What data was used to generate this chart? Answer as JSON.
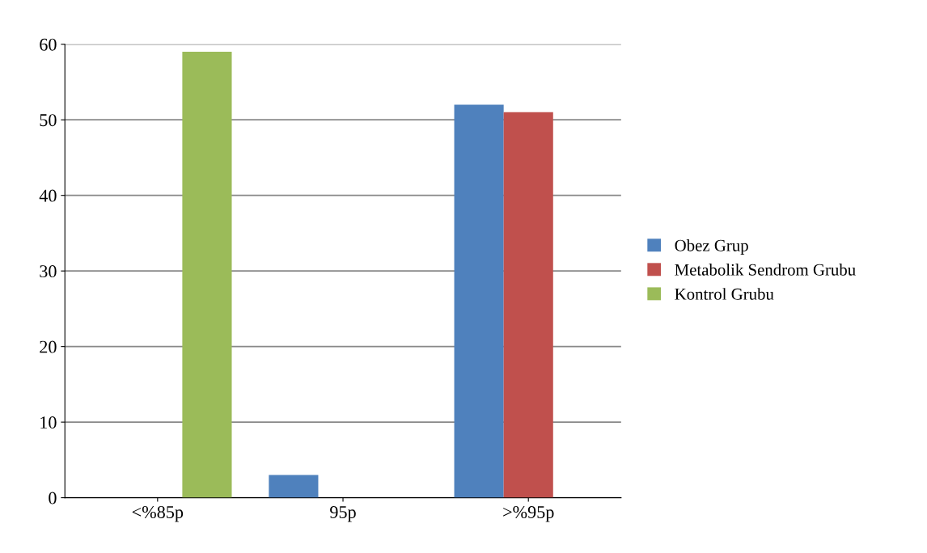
{
  "chart_data": {
    "type": "bar",
    "categories": [
      "<%85p",
      "95p",
      ">%95p"
    ],
    "series": [
      {
        "name": "Obez Grup",
        "color": "#4f81bd",
        "values": [
          0,
          3,
          52
        ]
      },
      {
        "name": "Metabolik Sendrom Grubu",
        "color": "#c0504d",
        "values": [
          0,
          0,
          51
        ]
      },
      {
        "name": "Kontrol Grubu",
        "color": "#9bbb59",
        "values": [
          59,
          0,
          0
        ]
      }
    ],
    "ylim": [
      0,
      60
    ],
    "yticks": [
      0,
      10,
      20,
      30,
      40,
      50,
      60
    ],
    "grid": "y",
    "legend": "right"
  }
}
